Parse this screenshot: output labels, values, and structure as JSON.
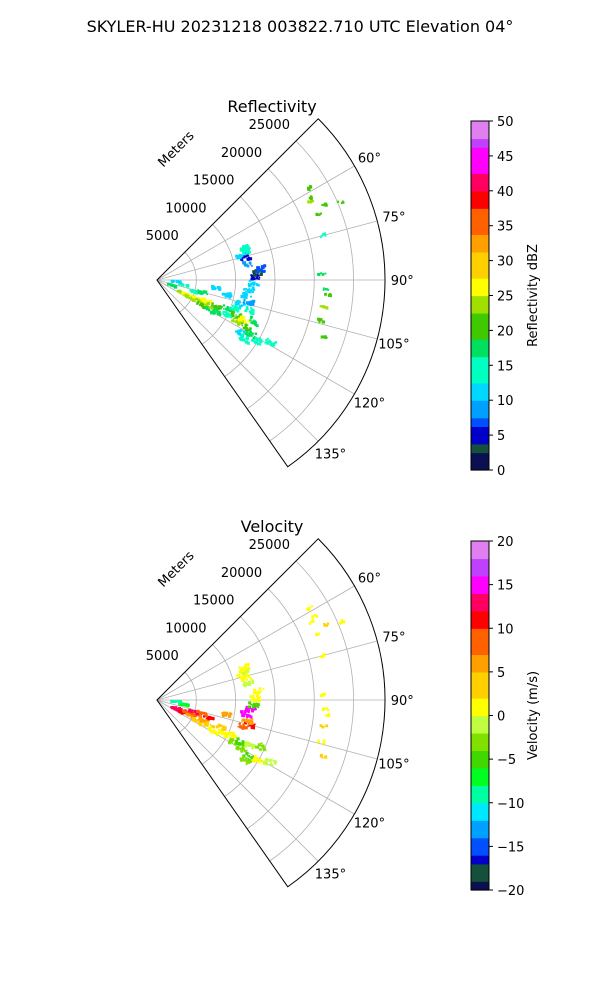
{
  "suptitle": "SKYLER-HU  20231218  003822.710 UTC Elevation 04°",
  "range_axis_label": "Meters",
  "chart_data": [
    {
      "type": "polar_sector",
      "title": "Reflectivity",
      "theta_direction": "clockwise from north (compass azimuth)",
      "theta_range_deg": [
        45,
        145
      ],
      "theta_ticks_deg": [
        60,
        75,
        90,
        105,
        120,
        135
      ],
      "theta_tick_labels": [
        "60°",
        "75°",
        "90°",
        "105°",
        "120°",
        "135°"
      ],
      "r_range_m": [
        0,
        29000
      ],
      "r_ticks_m": [
        5000,
        10000,
        15000,
        20000,
        25000
      ],
      "r_tick_labels": [
        "5000",
        "10000",
        "15000",
        "20000",
        "25000"
      ],
      "grid": true,
      "colorbar": {
        "label": "Reflectivity dBZ",
        "range": [
          0,
          50
        ],
        "ticks": [
          0,
          5,
          10,
          15,
          20,
          25,
          30,
          35,
          40,
          45,
          50
        ],
        "tick_labels": [
          "0",
          "5",
          "10",
          "15",
          "20",
          "25",
          "30",
          "35",
          "40",
          "45",
          "50"
        ],
        "stops": [
          {
            "v": 0,
            "c": "#0a1050"
          },
          {
            "v": 2,
            "c": "#15503a"
          },
          {
            "v": 4,
            "c": "#0000c8"
          },
          {
            "v": 6,
            "c": "#0050ff"
          },
          {
            "v": 8,
            "c": "#00a0ff"
          },
          {
            "v": 10,
            "c": "#00d8ff"
          },
          {
            "v": 13,
            "c": "#00ffc0"
          },
          {
            "v": 16,
            "c": "#00e060"
          },
          {
            "v": 19,
            "c": "#40c800"
          },
          {
            "v": 22,
            "c": "#a0e000"
          },
          {
            "v": 25,
            "c": "#ffff00"
          },
          {
            "v": 28,
            "c": "#ffd000"
          },
          {
            "v": 31,
            "c": "#ffa000"
          },
          {
            "v": 34,
            "c": "#ff6000"
          },
          {
            "v": 37,
            "c": "#ff0000"
          },
          {
            "v": 40,
            "c": "#ff0060"
          },
          {
            "v": 43,
            "c": "#ff00ff"
          },
          {
            "v": 46,
            "c": "#c040ff"
          },
          {
            "v": 48,
            "c": "#e080f0"
          },
          {
            "v": 50,
            "c": "#ffe8ff"
          }
        ]
      },
      "echoes": [
        {
          "az": 117,
          "r": 3500,
          "v": 24
        },
        {
          "az": 116,
          "r": 4200,
          "v": 25
        },
        {
          "az": 118,
          "r": 4800,
          "v": 23
        },
        {
          "az": 115,
          "r": 5500,
          "v": 26
        },
        {
          "az": 117,
          "r": 6000,
          "v": 24
        },
        {
          "az": 119,
          "r": 6500,
          "v": 20
        },
        {
          "az": 113,
          "r": 6800,
          "v": 27
        },
        {
          "az": 116,
          "r": 7500,
          "v": 22
        },
        {
          "az": 120,
          "r": 7800,
          "v": 18
        },
        {
          "az": 114,
          "r": 8300,
          "v": 21
        },
        {
          "az": 118,
          "r": 8800,
          "v": 17
        },
        {
          "az": 112,
          "r": 9500,
          "v": 16
        },
        {
          "az": 116,
          "r": 10000,
          "v": 15
        },
        {
          "az": 110,
          "r": 10500,
          "v": 14
        },
        {
          "az": 114,
          "r": 11000,
          "v": 19
        },
        {
          "az": 117,
          "r": 11500,
          "v": 23
        },
        {
          "az": 115,
          "r": 12200,
          "v": 26
        },
        {
          "az": 118,
          "r": 12800,
          "v": 21
        },
        {
          "az": 113,
          "r": 13500,
          "v": 16
        },
        {
          "az": 120,
          "r": 13800,
          "v": 18
        },
        {
          "az": 108,
          "r": 12500,
          "v": 13
        },
        {
          "az": 106,
          "r": 11000,
          "v": 12
        },
        {
          "az": 104,
          "r": 12000,
          "v": 9
        },
        {
          "az": 100,
          "r": 11500,
          "v": 12
        },
        {
          "az": 96,
          "r": 11800,
          "v": 10
        },
        {
          "az": 92,
          "r": 12300,
          "v": 11
        },
        {
          "az": 88,
          "r": 12500,
          "v": 4
        },
        {
          "az": 86,
          "r": 13000,
          "v": 3
        },
        {
          "az": 84,
          "r": 13200,
          "v": 6
        },
        {
          "az": 80,
          "r": 11800,
          "v": 9
        },
        {
          "az": 76,
          "r": 11600,
          "v": 5
        },
        {
          "az": 74,
          "r": 11200,
          "v": 12
        },
        {
          "az": 72,
          "r": 11900,
          "v": 14
        },
        {
          "az": 70,
          "r": 11800,
          "v": 13
        },
        {
          "az": 122,
          "r": 12500,
          "v": 12
        },
        {
          "az": 124,
          "r": 13500,
          "v": 13
        },
        {
          "az": 121,
          "r": 15000,
          "v": 14
        },
        {
          "az": 119,
          "r": 16500,
          "v": 13
        },
        {
          "az": 102,
          "r": 9000,
          "v": 10
        },
        {
          "az": 98,
          "r": 7500,
          "v": 12
        },
        {
          "az": 107,
          "r": 5000,
          "v": 15
        },
        {
          "az": 100,
          "r": 3500,
          "v": 13
        },
        {
          "az": 95,
          "r": 2500,
          "v": 12
        },
        {
          "az": 110,
          "r": 2000,
          "v": 16
        },
        {
          "az": 105,
          "r": 6000,
          "v": 18
        },
        {
          "az": 62,
          "r": 22500,
          "v": 21
        },
        {
          "az": 63,
          "r": 22000,
          "v": 24
        },
        {
          "az": 59,
          "r": 22800,
          "v": 20
        },
        {
          "az": 66,
          "r": 23500,
          "v": 20
        },
        {
          "az": 67,
          "r": 25500,
          "v": 19
        },
        {
          "az": 68,
          "r": 22200,
          "v": 21
        },
        {
          "az": 75,
          "r": 21800,
          "v": 14
        },
        {
          "az": 88,
          "r": 21000,
          "v": 16
        },
        {
          "az": 93,
          "r": 21500,
          "v": 18
        },
        {
          "az": 95,
          "r": 21800,
          "v": 19
        },
        {
          "az": 99,
          "r": 21500,
          "v": 22
        },
        {
          "az": 104,
          "r": 21500,
          "v": 20
        },
        {
          "az": 109,
          "r": 22500,
          "v": 19
        }
      ]
    },
    {
      "type": "polar_sector",
      "title": "Velocity",
      "theta_direction": "clockwise from north (compass azimuth)",
      "theta_range_deg": [
        45,
        145
      ],
      "theta_ticks_deg": [
        60,
        75,
        90,
        105,
        120,
        135
      ],
      "theta_tick_labels": [
        "60°",
        "75°",
        "90°",
        "105°",
        "120°",
        "135°"
      ],
      "r_range_m": [
        0,
        29000
      ],
      "r_ticks_m": [
        5000,
        10000,
        15000,
        20000,
        25000
      ],
      "r_tick_labels": [
        "5000",
        "10000",
        "15000",
        "20000",
        "25000"
      ],
      "grid": true,
      "colorbar": {
        "label": "Velocity (m/s)",
        "range": [
          -20,
          20
        ],
        "ticks": [
          -20,
          -15,
          -10,
          -5,
          0,
          5,
          10,
          15,
          20
        ],
        "tick_labels": [
          "−20",
          "−15",
          "−10",
          "−5",
          "0",
          "5",
          "10",
          "15",
          "20"
        ],
        "stops": [
          {
            "v": -20,
            "c": "#0a1050"
          },
          {
            "v": -18.5,
            "c": "#15503a"
          },
          {
            "v": -17,
            "c": "#0000c8"
          },
          {
            "v": -15.5,
            "c": "#0050ff"
          },
          {
            "v": -14,
            "c": "#00a0ff"
          },
          {
            "v": -12,
            "c": "#00e8ff"
          },
          {
            "v": -10,
            "c": "#00ffa0"
          },
          {
            "v": -8,
            "c": "#00ff20"
          },
          {
            "v": -6,
            "c": "#40d800"
          },
          {
            "v": -4,
            "c": "#80e000"
          },
          {
            "v": -2,
            "c": "#c0ff40"
          },
          {
            "v": 0,
            "c": "#ffff00"
          },
          {
            "v": 2.5,
            "c": "#ffd000"
          },
          {
            "v": 5,
            "c": "#ffa000"
          },
          {
            "v": 7.5,
            "c": "#ff6000"
          },
          {
            "v": 10,
            "c": "#ff0000"
          },
          {
            "v": 12,
            "c": "#ff0060"
          },
          {
            "v": 14,
            "c": "#ff00ff"
          },
          {
            "v": 16.5,
            "c": "#c040ff"
          },
          {
            "v": 18.5,
            "c": "#e080f0"
          },
          {
            "v": 20,
            "c": "#ffe8ff"
          }
        ]
      },
      "echoes": [
        {
          "az": 115,
          "r": 2500,
          "v": 13
        },
        {
          "az": 112,
          "r": 3200,
          "v": 12
        },
        {
          "az": 117,
          "r": 3500,
          "v": 10
        },
        {
          "az": 113,
          "r": 4200,
          "v": 9
        },
        {
          "az": 116,
          "r": 4800,
          "v": 7
        },
        {
          "az": 111,
          "r": 5500,
          "v": 8
        },
        {
          "az": 118,
          "r": 5800,
          "v": 4
        },
        {
          "az": 114,
          "r": 6500,
          "v": 6
        },
        {
          "az": 109,
          "r": 7000,
          "v": 10
        },
        {
          "az": 116,
          "r": 7500,
          "v": 3
        },
        {
          "az": 119,
          "r": 8200,
          "v": 1
        },
        {
          "az": 113,
          "r": 8800,
          "v": 4
        },
        {
          "az": 117,
          "r": 9500,
          "v": 0
        },
        {
          "az": 115,
          "r": 10500,
          "v": 2
        },
        {
          "az": 119,
          "r": 11000,
          "v": -3
        },
        {
          "az": 117,
          "r": 12000,
          "v": -5
        },
        {
          "az": 120,
          "r": 12500,
          "v": -4
        },
        {
          "az": 116,
          "r": 13200,
          "v": -2
        },
        {
          "az": 122,
          "r": 13800,
          "v": -5
        },
        {
          "az": 114,
          "r": 14500,
          "v": -3
        },
        {
          "az": 107,
          "r": 11500,
          "v": 8
        },
        {
          "az": 105,
          "r": 12200,
          "v": 10
        },
        {
          "az": 103,
          "r": 11800,
          "v": 7
        },
        {
          "az": 99,
          "r": 11500,
          "v": 14
        },
        {
          "az": 96,
          "r": 12000,
          "v": 16
        },
        {
          "az": 93,
          "r": 12300,
          "v": -6
        },
        {
          "az": 89,
          "r": 12500,
          "v": 0
        },
        {
          "az": 85,
          "r": 13000,
          "v": 1
        },
        {
          "az": 80,
          "r": 11800,
          "v": -2
        },
        {
          "az": 76,
          "r": 11600,
          "v": 0
        },
        {
          "az": 74,
          "r": 11200,
          "v": 2
        },
        {
          "az": 72,
          "r": 11900,
          "v": -1
        },
        {
          "az": 70,
          "r": 11800,
          "v": 0
        },
        {
          "az": 124,
          "r": 13500,
          "v": -3
        },
        {
          "az": 121,
          "r": 15000,
          "v": 1
        },
        {
          "az": 119,
          "r": 16500,
          "v": -1
        },
        {
          "az": 102,
          "r": 9000,
          "v": 5
        },
        {
          "az": 108,
          "r": 5000,
          "v": 12
        },
        {
          "az": 100,
          "r": 3500,
          "v": -7
        },
        {
          "az": 95,
          "r": 2500,
          "v": -9
        },
        {
          "az": 106,
          "r": 6000,
          "v": 9
        },
        {
          "az": 62,
          "r": 22500,
          "v": 2
        },
        {
          "az": 63,
          "r": 22000,
          "v": 0
        },
        {
          "az": 59,
          "r": 22800,
          "v": 1
        },
        {
          "az": 66,
          "r": 23500,
          "v": 3
        },
        {
          "az": 67,
          "r": 25500,
          "v": 0
        },
        {
          "az": 68,
          "r": 22200,
          "v": 1
        },
        {
          "az": 75,
          "r": 21800,
          "v": 2
        },
        {
          "az": 88,
          "r": 21000,
          "v": 1
        },
        {
          "az": 93,
          "r": 21500,
          "v": 0
        },
        {
          "az": 95,
          "r": 21800,
          "v": 2
        },
        {
          "az": 99,
          "r": 21500,
          "v": 4
        },
        {
          "az": 104,
          "r": 21500,
          "v": 1
        },
        {
          "az": 109,
          "r": 22500,
          "v": 3
        }
      ]
    }
  ]
}
